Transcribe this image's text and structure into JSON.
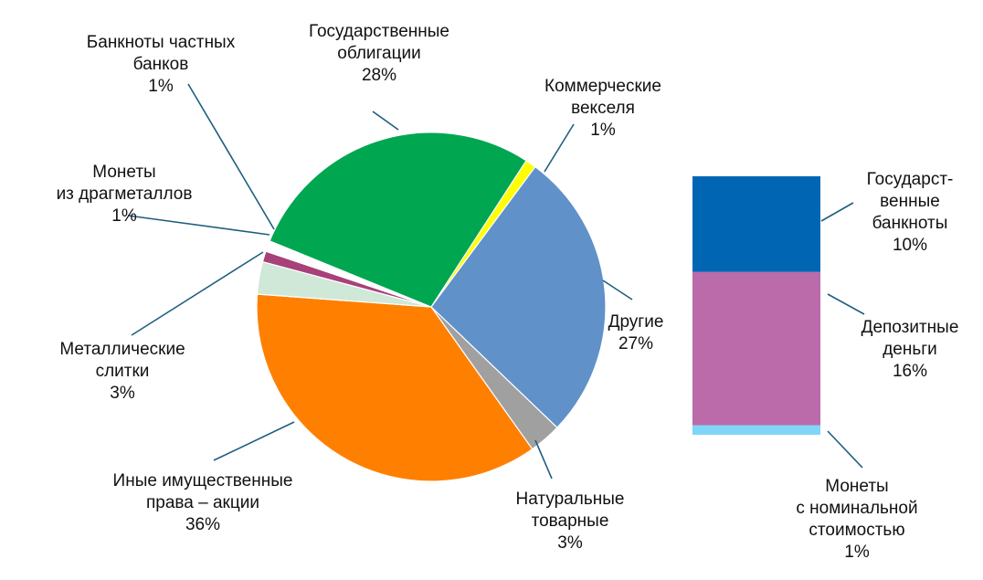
{
  "chart_data": [
    {
      "type": "pie",
      "slices": [
        {
          "name": "Коммерческие векселя",
          "label_lines": [
            "Коммерческие",
            "векселя",
            "1%"
          ],
          "value": 1,
          "color": "#ffff00"
        },
        {
          "name": "Другие",
          "label_lines": [
            "Другие",
            "27%"
          ],
          "value": 27,
          "color": "#6091c9"
        },
        {
          "name": "Натуральные товарные",
          "label_lines": [
            "Натуральные",
            "товарные",
            "3%"
          ],
          "value": 3,
          "color": "#a0a0a0"
        },
        {
          "name": "Иные имущественные права – акции",
          "label_lines": [
            "Иные имущественные",
            "права – акции",
            "36%"
          ],
          "value": 36,
          "color": "#ff8000"
        },
        {
          "name": "Металлические слитки",
          "label_lines": [
            "Металлические",
            "слитки",
            "3%"
          ],
          "value": 3,
          "color": "#cfe8d8"
        },
        {
          "name": "Монеты из драгметаллов",
          "label_lines": [
            "Монеты",
            "из драгметаллов",
            "1%"
          ],
          "value": 1,
          "color": "#a8407a"
        },
        {
          "name": "Банкноты частных банков",
          "label_lines": [
            "Банкноты частных",
            "банков",
            "1%"
          ],
          "value": 1,
          "color": "#ffffff"
        },
        {
          "name": "Государственные облигации",
          "label_lines": [
            "Государственные",
            "облигации",
            "28%"
          ],
          "value": 28,
          "color": "#00a650"
        }
      ]
    },
    {
      "type": "bar",
      "stacked": true,
      "segments": [
        {
          "name": "Государственные банкноты",
          "label_lines": [
            "Государст-",
            "венные",
            "банкноты",
            "10%"
          ],
          "value": 10,
          "color": "#0066b3"
        },
        {
          "name": "Депозитные деньги",
          "label_lines": [
            "Депозитные",
            "деньги",
            "16%"
          ],
          "value": 16,
          "color": "#bb6aaa"
        },
        {
          "name": "Монеты с номинальной стоимостью",
          "label_lines": [
            "Монеты",
            "с номинальной",
            "стоимостью",
            "1%"
          ],
          "value": 1,
          "color": "#7fd6f7"
        }
      ]
    }
  ]
}
